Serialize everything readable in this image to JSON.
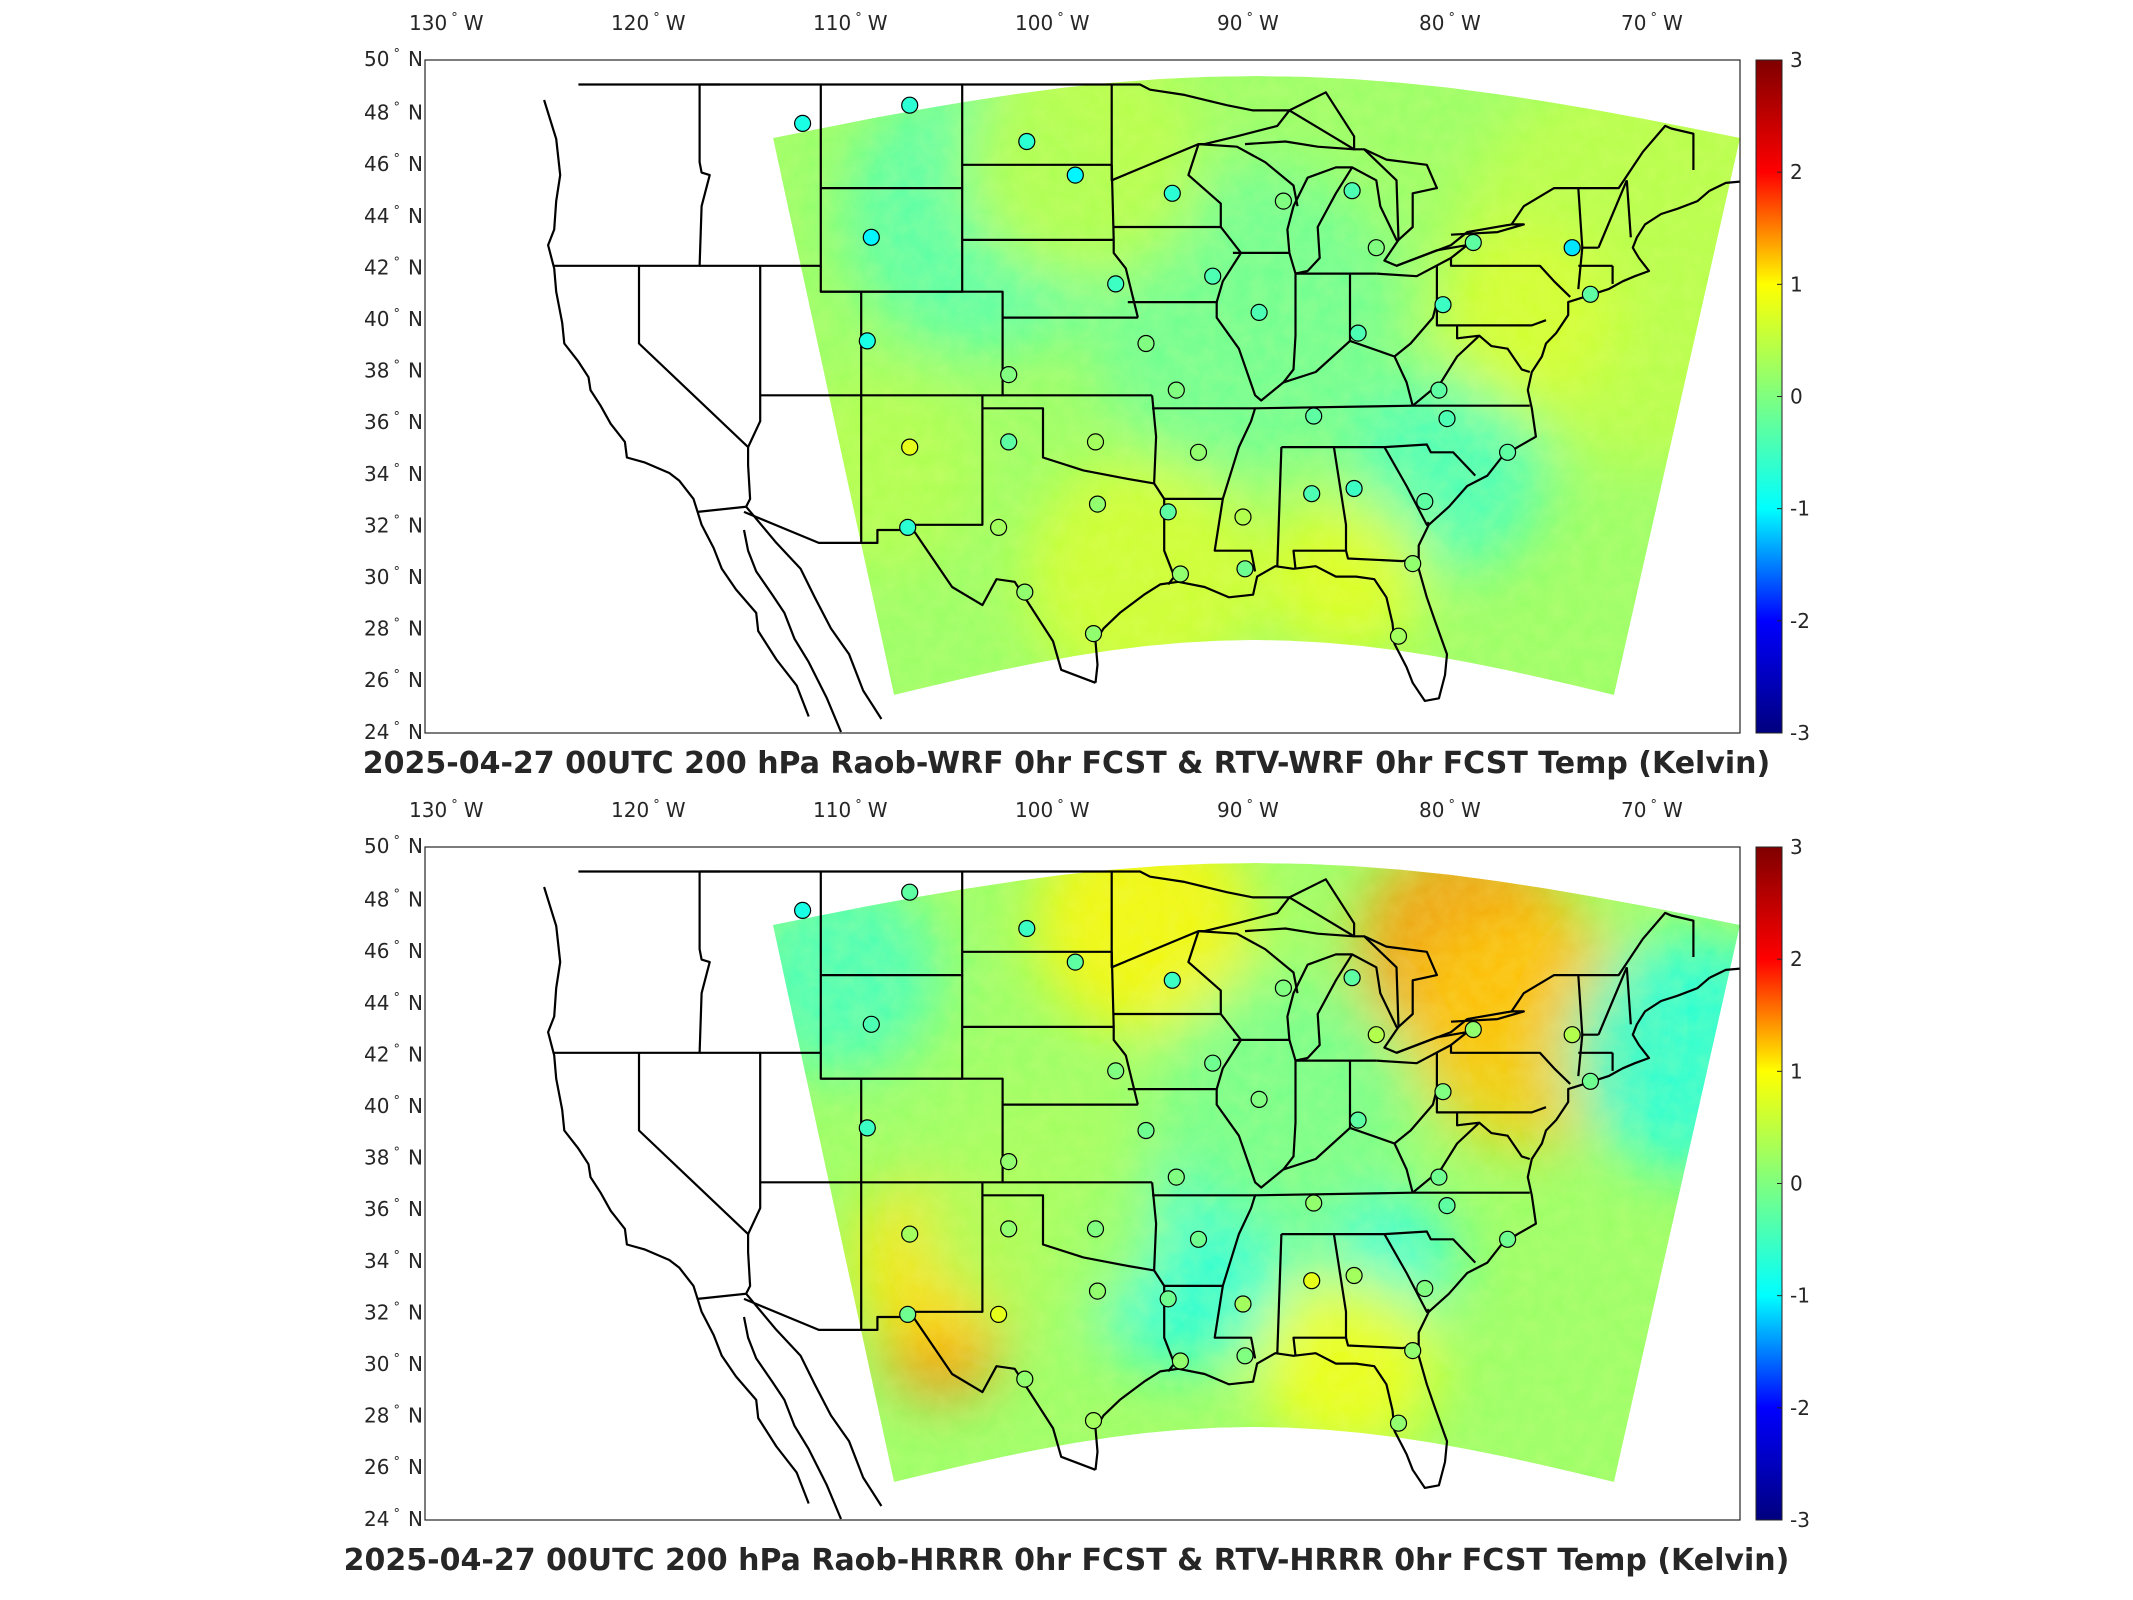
{
  "figure": {
    "panels": [
      {
        "id": "wrf",
        "title": "2025-04-27 00UTC 200 hPa Raob-WRF 0hr FCST & RTV-WRF 0hr FCST Temp (Kelvin)"
      },
      {
        "id": "hrrr",
        "title": "2025-04-27 00UTC 200 hPa Raob-HRRR 0hr FCST & RTV-HRRR 0hr FCST Temp (Kelvin)"
      }
    ],
    "lon_ticks": [
      {
        "value": "130",
        "suffix": "W"
      },
      {
        "value": "120",
        "suffix": "W"
      },
      {
        "value": "110",
        "suffix": "W"
      },
      {
        "value": "100",
        "suffix": "W"
      },
      {
        "value": "90",
        "suffix": "W"
      },
      {
        "value": "80",
        "suffix": "W"
      },
      {
        "value": "70",
        "suffix": "W"
      }
    ],
    "lat_ticks": [
      {
        "value": "50",
        "suffix": "N"
      },
      {
        "value": "48",
        "suffix": "N"
      },
      {
        "value": "46",
        "suffix": "N"
      },
      {
        "value": "44",
        "suffix": "N"
      },
      {
        "value": "42",
        "suffix": "N"
      },
      {
        "value": "40",
        "suffix": "N"
      },
      {
        "value": "38",
        "suffix": "N"
      },
      {
        "value": "36",
        "suffix": "N"
      },
      {
        "value": "34",
        "suffix": "N"
      },
      {
        "value": "32",
        "suffix": "N"
      },
      {
        "value": "30",
        "suffix": "N"
      },
      {
        "value": "28",
        "suffix": "N"
      },
      {
        "value": "26",
        "suffix": "N"
      },
      {
        "value": "24",
        "suffix": "N"
      }
    ],
    "colorbar": {
      "ticks": [
        "3",
        "2",
        "1",
        "0",
        "-1",
        "-2",
        "-3"
      ],
      "range": [
        -3,
        3
      ],
      "colormap": "jet",
      "colors": [
        "#00007f",
        "#0000ff",
        "#00ffff",
        "#7fff7f",
        "#ffff00",
        "#ff0000",
        "#7f0000"
      ]
    },
    "map_colors": {
      "border": "#000000",
      "frame": "#262626",
      "background": "#ffffff"
    }
  },
  "chart_data": [
    {
      "type": "heatmap",
      "title": "2025-04-27 00UTC 200 hPa Raob-WRF 0hr FCST & RTV-WRF 0hr FCST Temp (Kelvin)",
      "x_range": [
        -132,
        -63
      ],
      "y_range": [
        24,
        50
      ],
      "color_range": [
        -3,
        3
      ],
      "stations": [
        {
          "lon": -111.9,
          "lat": 47.5,
          "value": -0.6
        },
        {
          "lon": -106.6,
          "lat": 48.2,
          "value": -0.5
        },
        {
          "lon": -100.8,
          "lat": 46.8,
          "value": -0.5
        },
        {
          "lon": -98.4,
          "lat": 45.5,
          "value": -0.8
        },
        {
          "lon": -93.6,
          "lat": 44.8,
          "value": -0.5
        },
        {
          "lon": -88.1,
          "lat": 44.5,
          "value": 0.0
        },
        {
          "lon": -84.7,
          "lat": 44.9,
          "value": -0.3
        },
        {
          "lon": -108.5,
          "lat": 43.1,
          "value": -0.8
        },
        {
          "lon": -83.5,
          "lat": 42.7,
          "value": 0.0
        },
        {
          "lon": -78.7,
          "lat": 42.9,
          "value": -0.2
        },
        {
          "lon": -73.8,
          "lat": 42.7,
          "value": -0.9
        },
        {
          "lon": -96.4,
          "lat": 41.3,
          "value": -0.4
        },
        {
          "lon": -91.6,
          "lat": 41.6,
          "value": -0.3
        },
        {
          "lon": -89.3,
          "lat": 40.2,
          "value": -0.3
        },
        {
          "lon": -80.2,
          "lat": 40.5,
          "value": -0.4
        },
        {
          "lon": -72.9,
          "lat": 40.9,
          "value": -0.2
        },
        {
          "lon": -108.7,
          "lat": 39.1,
          "value": -0.6
        },
        {
          "lon": -94.9,
          "lat": 39.0,
          "value": 0.0
        },
        {
          "lon": -84.4,
          "lat": 39.4,
          "value": -0.3
        },
        {
          "lon": -101.7,
          "lat": 37.8,
          "value": 0.0
        },
        {
          "lon": -93.4,
          "lat": 37.2,
          "value": 0.0
        },
        {
          "lon": -80.4,
          "lat": 37.2,
          "value": -0.2
        },
        {
          "lon": -86.6,
          "lat": 36.2,
          "value": -0.2
        },
        {
          "lon": -80.0,
          "lat": 36.1,
          "value": -0.3
        },
        {
          "lon": -106.6,
          "lat": 35.0,
          "value": 0.6
        },
        {
          "lon": -101.7,
          "lat": 35.2,
          "value": -0.2
        },
        {
          "lon": -97.4,
          "lat": 35.2,
          "value": 0.2
        },
        {
          "lon": -92.3,
          "lat": 34.8,
          "value": 0.1
        },
        {
          "lon": -77.0,
          "lat": 34.8,
          "value": -0.2
        },
        {
          "lon": -97.3,
          "lat": 32.8,
          "value": 0.1
        },
        {
          "lon": -93.8,
          "lat": 32.5,
          "value": -0.2
        },
        {
          "lon": -90.1,
          "lat": 32.3,
          "value": 0.3
        },
        {
          "lon": -86.7,
          "lat": 33.2,
          "value": -0.3
        },
        {
          "lon": -84.6,
          "lat": 33.4,
          "value": -0.4
        },
        {
          "lon": -81.1,
          "lat": 32.9,
          "value": -0.2
        },
        {
          "lon": -106.7,
          "lat": 31.9,
          "value": -0.5
        },
        {
          "lon": -102.2,
          "lat": 31.9,
          "value": 0.2
        },
        {
          "lon": -93.2,
          "lat": 30.1,
          "value": 0.1
        },
        {
          "lon": -90.0,
          "lat": 30.3,
          "value": -0.1
        },
        {
          "lon": -81.7,
          "lat": 30.5,
          "value": 0.1
        },
        {
          "lon": -100.9,
          "lat": 29.4,
          "value": 0.1
        },
        {
          "lon": -97.5,
          "lat": 27.8,
          "value": 0.1
        },
        {
          "lon": -82.4,
          "lat": 27.7,
          "value": 0.2
        }
      ]
    },
    {
      "type": "heatmap",
      "title": "2025-04-27 00UTC 200 hPa Raob-HRRR 0hr FCST & RTV-HRRR 0hr FCST Temp (Kelvin)",
      "x_range": [
        -132,
        -63
      ],
      "y_range": [
        24,
        50
      ],
      "color_range": [
        -3,
        3
      ],
      "stations": [
        {
          "lon": -111.9,
          "lat": 47.5,
          "value": -0.6
        },
        {
          "lon": -106.6,
          "lat": 48.2,
          "value": -0.2
        },
        {
          "lon": -100.8,
          "lat": 46.8,
          "value": -0.4
        },
        {
          "lon": -98.4,
          "lat": 45.5,
          "value": -0.2
        },
        {
          "lon": -93.6,
          "lat": 44.8,
          "value": -0.4
        },
        {
          "lon": -88.1,
          "lat": 44.5,
          "value": 0.0
        },
        {
          "lon": -84.7,
          "lat": 44.9,
          "value": -0.2
        },
        {
          "lon": -108.5,
          "lat": 43.1,
          "value": -0.3
        },
        {
          "lon": -83.5,
          "lat": 42.7,
          "value": 0.3
        },
        {
          "lon": -78.7,
          "lat": 42.9,
          "value": 0.1
        },
        {
          "lon": -73.8,
          "lat": 42.7,
          "value": 0.3
        },
        {
          "lon": -96.4,
          "lat": 41.3,
          "value": 0.0
        },
        {
          "lon": -91.6,
          "lat": 41.6,
          "value": -0.1
        },
        {
          "lon": -89.3,
          "lat": 40.2,
          "value": 0.0
        },
        {
          "lon": -80.2,
          "lat": 40.5,
          "value": 0.0
        },
        {
          "lon": -72.9,
          "lat": 40.9,
          "value": -0.1
        },
        {
          "lon": -108.7,
          "lat": 39.1,
          "value": -0.4
        },
        {
          "lon": -94.9,
          "lat": 39.0,
          "value": -0.1
        },
        {
          "lon": -84.4,
          "lat": 39.4,
          "value": -0.2
        },
        {
          "lon": -101.7,
          "lat": 37.8,
          "value": 0.1
        },
        {
          "lon": -93.4,
          "lat": 37.2,
          "value": 0.0
        },
        {
          "lon": -80.4,
          "lat": 37.2,
          "value": -0.1
        },
        {
          "lon": -86.6,
          "lat": 36.2,
          "value": 0.1
        },
        {
          "lon": -80.0,
          "lat": 36.1,
          "value": -0.2
        },
        {
          "lon": -106.6,
          "lat": 35.0,
          "value": 0.2
        },
        {
          "lon": -101.7,
          "lat": 35.2,
          "value": 0.1
        },
        {
          "lon": -97.4,
          "lat": 35.2,
          "value": 0.0
        },
        {
          "lon": -92.3,
          "lat": 34.8,
          "value": -0.1
        },
        {
          "lon": -77.0,
          "lat": 34.8,
          "value": -0.1
        },
        {
          "lon": -97.3,
          "lat": 32.8,
          "value": 0.1
        },
        {
          "lon": -93.8,
          "lat": 32.5,
          "value": -0.1
        },
        {
          "lon": -90.1,
          "lat": 32.3,
          "value": 0.2
        },
        {
          "lon": -86.7,
          "lat": 33.2,
          "value": 0.6
        },
        {
          "lon": -84.6,
          "lat": 33.4,
          "value": 0.2
        },
        {
          "lon": -81.1,
          "lat": 32.9,
          "value": 0.0
        },
        {
          "lon": -106.7,
          "lat": 31.9,
          "value": -0.1
        },
        {
          "lon": -102.2,
          "lat": 31.9,
          "value": 0.6
        },
        {
          "lon": -93.2,
          "lat": 30.1,
          "value": 0.1
        },
        {
          "lon": -90.0,
          "lat": 30.3,
          "value": 0.0
        },
        {
          "lon": -81.7,
          "lat": 30.5,
          "value": 0.1
        },
        {
          "lon": -100.9,
          "lat": 29.4,
          "value": 0.1
        },
        {
          "lon": -97.5,
          "lat": 27.8,
          "value": 0.2
        },
        {
          "lon": -82.4,
          "lat": 27.7,
          "value": 0.1
        }
      ]
    }
  ]
}
